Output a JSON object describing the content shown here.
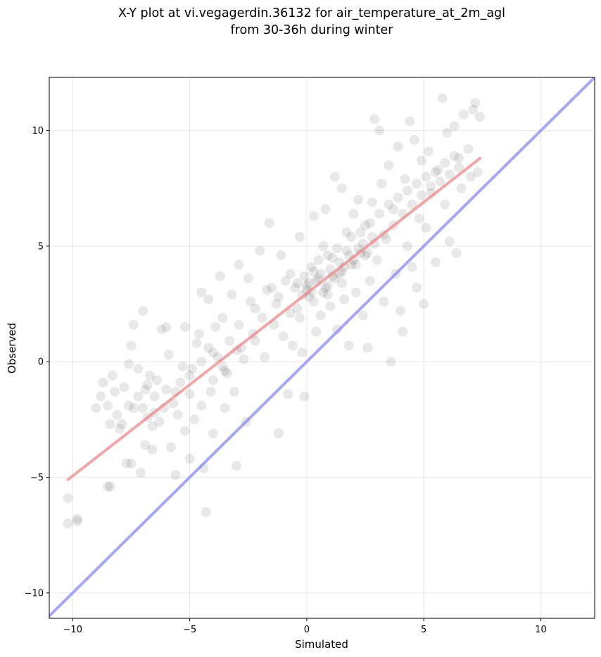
{
  "chart_data": {
    "type": "scatter",
    "title_lines": [
      "X-Y plot at vi.vegagerdin.36132 for air_temperature_at_2m_agl",
      "from 30-36h during winter"
    ],
    "xlabel": "Simulated",
    "ylabel": "Observed",
    "xlim": [
      -11.0,
      12.3
    ],
    "ylim": [
      -11.1,
      12.3
    ],
    "xticks": [
      -10,
      -5,
      0,
      5,
      10
    ],
    "yticks": [
      -10,
      -5,
      0,
      5,
      10
    ],
    "xtick_labels": [
      "−10",
      "−5",
      "0",
      "5",
      "10"
    ],
    "ytick_labels": [
      "−10",
      "−5",
      "0",
      "5",
      "10"
    ],
    "grid": true,
    "point_color": "#000000",
    "point_opacity": 0.09,
    "series": [
      {
        "name": "",
        "kind": "scatter",
        "points": [
          [
            -10.2,
            -5.9
          ],
          [
            -10.2,
            -7.0
          ],
          [
            -9.8,
            -6.9
          ],
          [
            -9.8,
            -6.8
          ],
          [
            -8.5,
            -5.4
          ],
          [
            -8.4,
            -5.4
          ],
          [
            -8.7,
            -0.9
          ],
          [
            -8.5,
            -1.9
          ],
          [
            -8.4,
            -2.7
          ],
          [
            -8.2,
            -1.3
          ],
          [
            -8.1,
            -2.3
          ],
          [
            -7.9,
            -2.7
          ],
          [
            -7.7,
            -4.4
          ],
          [
            -7.5,
            -4.4
          ],
          [
            -7.6,
            -0.1
          ],
          [
            -7.5,
            0.7
          ],
          [
            -7.4,
            1.6
          ],
          [
            -7.2,
            -1.5
          ],
          [
            -7.0,
            2.2
          ],
          [
            -7.1,
            -4.8
          ],
          [
            -6.9,
            -3.6
          ],
          [
            -6.8,
            -2.4
          ],
          [
            -6.7,
            -0.6
          ],
          [
            -6.6,
            -3.8
          ],
          [
            -6.5,
            -1.5
          ],
          [
            -6.3,
            -2.6
          ],
          [
            -6.2,
            1.4
          ],
          [
            -6.0,
            1.5
          ],
          [
            -6.0,
            -1.2
          ],
          [
            -5.8,
            -3.7
          ],
          [
            -5.6,
            -4.9
          ],
          [
            -5.5,
            -2.3
          ],
          [
            -5.3,
            -0.2
          ],
          [
            -5.2,
            1.5
          ],
          [
            -5.0,
            -1.4
          ],
          [
            -5.0,
            -4.2
          ],
          [
            -4.8,
            -2.5
          ],
          [
            -4.7,
            0.8
          ],
          [
            -4.5,
            3.0
          ],
          [
            -4.4,
            -4.6
          ],
          [
            -4.3,
            -6.5
          ],
          [
            -4.2,
            2.7
          ],
          [
            -4.1,
            -1.3
          ],
          [
            -4.0,
            -3.1
          ],
          [
            -3.8,
            0.2
          ],
          [
            -3.7,
            3.7
          ],
          [
            -3.6,
            1.9
          ],
          [
            -3.5,
            -2.0
          ],
          [
            -3.4,
            -0.5
          ],
          [
            -3.2,
            2.9
          ],
          [
            -3.0,
            -4.5
          ],
          [
            -2.9,
            4.2
          ],
          [
            -2.8,
            0.6
          ],
          [
            -2.6,
            -2.6
          ],
          [
            -2.5,
            3.6
          ],
          [
            -2.3,
            1.2
          ],
          [
            -2.2,
            2.3
          ],
          [
            -2.0,
            4.8
          ],
          [
            -1.8,
            0.2
          ],
          [
            -1.6,
            6.0
          ],
          [
            -1.5,
            3.2
          ],
          [
            -1.3,
            2.5
          ],
          [
            -1.2,
            -3.1
          ],
          [
            -1.1,
            4.6
          ],
          [
            -1.0,
            1.1
          ],
          [
            -0.8,
            -1.4
          ],
          [
            -0.7,
            3.8
          ],
          [
            -0.6,
            0.7
          ],
          [
            -0.4,
            2.3
          ],
          [
            -0.3,
            5.4
          ],
          [
            -0.2,
            0.4
          ],
          [
            -0.1,
            -1.5
          ],
          [
            0.0,
            3.1
          ],
          [
            0.1,
            2.8
          ],
          [
            0.2,
            4.1
          ],
          [
            0.3,
            6.3
          ],
          [
            0.4,
            1.3
          ],
          [
            0.5,
            3.6
          ],
          [
            0.6,
            2.0
          ],
          [
            0.7,
            5.0
          ],
          [
            0.8,
            6.6
          ],
          [
            0.9,
            3.3
          ],
          [
            1.0,
            2.4
          ],
          [
            1.1,
            4.5
          ],
          [
            1.2,
            8.0
          ],
          [
            1.3,
            1.4
          ],
          [
            1.4,
            3.8
          ],
          [
            1.5,
            7.5
          ],
          [
            1.6,
            2.7
          ],
          [
            1.7,
            5.6
          ],
          [
            1.8,
            0.7
          ],
          [
            1.9,
            4.2
          ],
          [
            2.0,
            6.4
          ],
          [
            2.1,
            3.0
          ],
          [
            2.2,
            7.0
          ],
          [
            2.3,
            4.7
          ],
          [
            2.4,
            2.0
          ],
          [
            2.5,
            5.9
          ],
          [
            2.6,
            0.6
          ],
          [
            2.7,
            3.5
          ],
          [
            2.8,
            6.9
          ],
          [
            2.9,
            10.5
          ],
          [
            3.0,
            4.4
          ],
          [
            3.1,
            10.0
          ],
          [
            3.2,
            7.7
          ],
          [
            3.3,
            2.6
          ],
          [
            3.4,
            5.3
          ],
          [
            3.5,
            8.5
          ],
          [
            3.6,
            0.0
          ],
          [
            3.7,
            6.6
          ],
          [
            3.8,
            3.8
          ],
          [
            3.9,
            9.3
          ],
          [
            4.0,
            2.2
          ],
          [
            4.1,
            1.3
          ],
          [
            4.2,
            7.9
          ],
          [
            4.3,
            5.0
          ],
          [
            4.4,
            10.4
          ],
          [
            4.5,
            4.1
          ],
          [
            4.6,
            9.6
          ],
          [
            4.7,
            3.2
          ],
          [
            4.8,
            6.2
          ],
          [
            4.9,
            8.7
          ],
          [
            5.0,
            2.5
          ],
          [
            5.1,
            5.8
          ],
          [
            5.2,
            9.1
          ],
          [
            5.3,
            7.3
          ],
          [
            5.5,
            4.3
          ],
          [
            5.6,
            8.3
          ],
          [
            5.8,
            11.4
          ],
          [
            5.9,
            6.8
          ],
          [
            6.0,
            9.9
          ],
          [
            6.1,
            5.2
          ],
          [
            6.3,
            10.2
          ],
          [
            6.4,
            4.7
          ],
          [
            6.5,
            8.8
          ],
          [
            6.6,
            7.5
          ],
          [
            6.7,
            10.7
          ],
          [
            6.9,
            9.2
          ],
          [
            7.0,
            8.0
          ],
          [
            7.1,
            10.9
          ],
          [
            7.2,
            11.2
          ],
          [
            7.3,
            8.2
          ],
          [
            7.4,
            10.6
          ],
          [
            -9.0,
            -2.0
          ],
          [
            -8.8,
            -1.5
          ],
          [
            -8.3,
            -0.6
          ],
          [
            -8.0,
            -2.9
          ],
          [
            -7.8,
            -1.1
          ],
          [
            -7.4,
            -2.0
          ],
          [
            -7.2,
            -0.3
          ],
          [
            -6.9,
            -1.2
          ],
          [
            -6.6,
            -2.8
          ],
          [
            -6.4,
            -0.8
          ],
          [
            -6.1,
            -2.0
          ],
          [
            -5.9,
            0.3
          ],
          [
            -5.7,
            -1.8
          ],
          [
            -5.4,
            -0.9
          ],
          [
            -5.2,
            -3.0
          ],
          [
            -4.9,
            -0.3
          ],
          [
            -4.6,
            1.2
          ],
          [
            -4.5,
            -1.9
          ],
          [
            -4.2,
            0.6
          ],
          [
            -4.0,
            -0.8
          ],
          [
            -3.9,
            1.5
          ],
          [
            -3.6,
            -0.2
          ],
          [
            -3.3,
            0.9
          ],
          [
            -3.1,
            -1.3
          ],
          [
            -2.9,
            1.6
          ],
          [
            -2.7,
            0.1
          ],
          [
            -2.4,
            2.6
          ],
          [
            -2.2,
            0.9
          ],
          [
            -1.9,
            1.9
          ],
          [
            -1.7,
            3.1
          ],
          [
            -1.4,
            1.6
          ],
          [
            -1.2,
            2.8
          ],
          [
            -0.9,
            3.5
          ],
          [
            -0.7,
            2.1
          ],
          [
            -0.5,
            3.2
          ],
          [
            -0.3,
            1.9
          ],
          [
            -0.1,
            3.7
          ],
          [
            0.1,
            3.4
          ],
          [
            0.3,
            2.6
          ],
          [
            0.5,
            4.4
          ],
          [
            0.7,
            3.0
          ],
          [
            0.9,
            4.6
          ],
          [
            1.1,
            3.7
          ],
          [
            1.3,
            4.9
          ],
          [
            1.5,
            3.9
          ],
          [
            1.7,
            4.8
          ],
          [
            1.9,
            5.4
          ],
          [
            2.1,
            4.2
          ],
          [
            2.3,
            5.6
          ],
          [
            2.5,
            4.6
          ],
          [
            2.7,
            6.0
          ],
          [
            2.9,
            5.1
          ],
          [
            3.1,
            6.4
          ],
          [
            3.3,
            5.5
          ],
          [
            3.5,
            6.8
          ],
          [
            3.7,
            5.9
          ],
          [
            3.9,
            7.1
          ],
          [
            4.1,
            6.4
          ],
          [
            4.3,
            7.4
          ],
          [
            4.5,
            6.8
          ],
          [
            4.7,
            7.7
          ],
          [
            4.9,
            7.2
          ],
          [
            5.1,
            8.0
          ],
          [
            5.3,
            7.6
          ],
          [
            5.5,
            8.2
          ],
          [
            5.7,
            7.8
          ],
          [
            5.9,
            8.6
          ],
          [
            6.1,
            8.1
          ],
          [
            6.3,
            8.9
          ],
          [
            6.5,
            8.4
          ],
          [
            0.0,
            3.3
          ],
          [
            0.2,
            3.0
          ],
          [
            0.4,
            3.5
          ],
          [
            0.6,
            3.8
          ],
          [
            0.8,
            3.2
          ],
          [
            1.0,
            4.0
          ],
          [
            1.2,
            3.6
          ],
          [
            1.4,
            4.3
          ],
          [
            1.6,
            4.1
          ],
          [
            1.8,
            4.6
          ],
          [
            2.0,
            4.4
          ],
          [
            2.2,
            4.9
          ],
          [
            2.4,
            5.1
          ],
          [
            2.6,
            4.7
          ],
          [
            2.8,
            5.4
          ],
          [
            -0.2,
            2.9
          ],
          [
            -0.4,
            3.4
          ],
          [
            0.3,
            3.9
          ],
          [
            0.9,
            2.9
          ],
          [
            1.5,
            3.4
          ],
          [
            -3.5,
            -0.4
          ],
          [
            -4.5,
            0.0
          ],
          [
            -3.0,
            0.5
          ],
          [
            -4.0,
            0.4
          ],
          [
            -5.0,
            -0.6
          ],
          [
            -6.5,
            -2.2
          ],
          [
            -7.0,
            -2.0
          ],
          [
            -7.6,
            -1.9
          ],
          [
            -6.8,
            -1.0
          ],
          [
            -5.6,
            -1.3
          ]
        ]
      },
      {
        "name": "",
        "kind": "line",
        "color": "#f08080",
        "opacity": 0.7,
        "points": [
          [
            -10.2,
            -5.1
          ],
          [
            7.4,
            8.8
          ]
        ]
      },
      {
        "name": "",
        "kind": "line",
        "color": "#8080f5",
        "opacity": 0.7,
        "points": [
          [
            -11.0,
            -11.0
          ],
          [
            12.3,
            12.3
          ]
        ]
      }
    ]
  }
}
